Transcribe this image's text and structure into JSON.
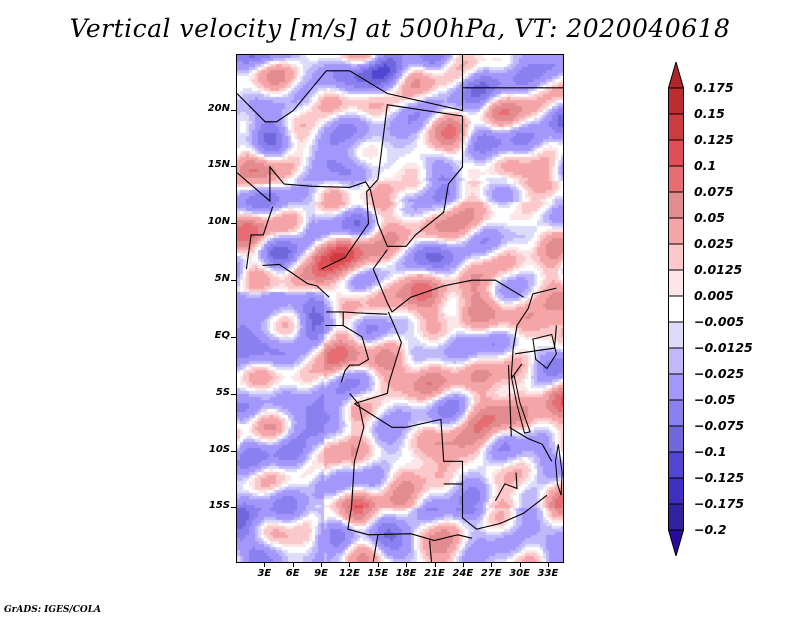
{
  "title": "Vertical velocity [m/s] at 500hPa, VT: 2020040618",
  "credit": "GrADS: IGES/COLA",
  "map": {
    "variable": "Vertical velocity",
    "units": "m/s",
    "level": "500hPa",
    "valid_time": "2020040618",
    "lon_range": [
      0,
      34.7
    ],
    "lat_range": [
      -19.9,
      24.9
    ],
    "lat_ticks": [
      {
        "value": 20,
        "label": "20N"
      },
      {
        "value": 15,
        "label": "15N"
      },
      {
        "value": 10,
        "label": "10N"
      },
      {
        "value": 5,
        "label": "5N"
      },
      {
        "value": 0,
        "label": "EQ"
      },
      {
        "value": -5,
        "label": "5S"
      },
      {
        "value": -10,
        "label": "10S"
      },
      {
        "value": -15,
        "label": "15S"
      }
    ],
    "lon_ticks": [
      {
        "value": 3,
        "label": "3E"
      },
      {
        "value": 6,
        "label": "6E"
      },
      {
        "value": 9,
        "label": "9E"
      },
      {
        "value": 12,
        "label": "12E"
      },
      {
        "value": 15,
        "label": "15E"
      },
      {
        "value": 18,
        "label": "18E"
      },
      {
        "value": 21,
        "label": "21E"
      },
      {
        "value": 24,
        "label": "24E"
      },
      {
        "value": 27,
        "label": "27E"
      },
      {
        "value": 30,
        "label": "30E"
      },
      {
        "value": 33,
        "label": "33E"
      }
    ]
  },
  "colorbar": {
    "levels": [
      {
        "label": "0.175",
        "value": 0.175
      },
      {
        "label": "0.15",
        "value": 0.15
      },
      {
        "label": "0.125",
        "value": 0.125
      },
      {
        "label": "0.1",
        "value": 0.1
      },
      {
        "label": "0.075",
        "value": 0.075
      },
      {
        "label": "0.05",
        "value": 0.05
      },
      {
        "label": "0.025",
        "value": 0.025
      },
      {
        "label": "0.0125",
        "value": 0.0125
      },
      {
        "label": "0.005",
        "value": 0.005
      },
      {
        "label": "−0.005",
        "value": -0.005
      },
      {
        "label": "−0.0125",
        "value": -0.0125
      },
      {
        "label": "−0.025",
        "value": -0.025
      },
      {
        "label": "−0.05",
        "value": -0.05
      },
      {
        "label": "−0.075",
        "value": -0.075
      },
      {
        "label": "−0.1",
        "value": -0.1
      },
      {
        "label": "−0.125",
        "value": -0.125
      },
      {
        "label": "−0.175",
        "value": -0.175
      },
      {
        "label": "−0.2",
        "value": -0.2
      }
    ],
    "colors_top_to_bottom": [
      "#b0242a",
      "#bd2c2e",
      "#cc3b3f",
      "#e04f55",
      "#e66e73",
      "#e38c90",
      "#f5a5a7",
      "#fbc9ca",
      "#fde6e7",
      "#ffffff",
      "#dcdcfa",
      "#c1b8fb",
      "#a497fb",
      "#8a80f0",
      "#7167dc",
      "#5146d2",
      "#3e2fc0",
      "#31239f",
      "#2a0a9e"
    ]
  }
}
